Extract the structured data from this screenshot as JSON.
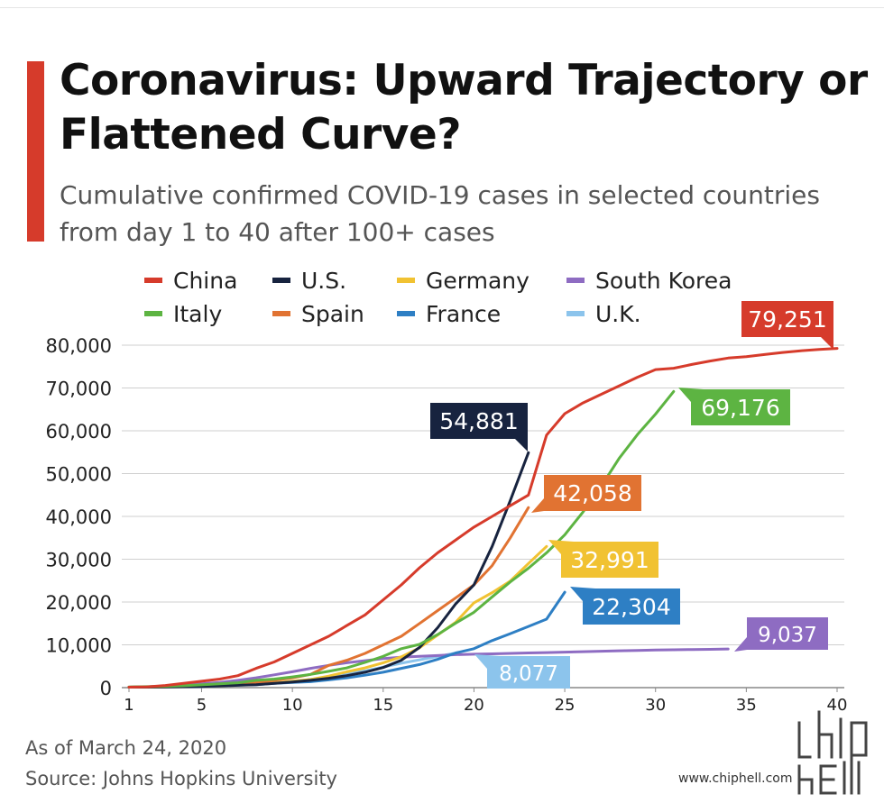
{
  "title": "Coronavirus: Upward Trajectory or Flattened Curve?",
  "subtitle": "Cumulative confirmed COVID-19 cases in selected countries from day 1 to 40 after 100+ cases",
  "footer": {
    "as_of": "As of March 24, 2020",
    "source": "Source: Johns Hopkins University"
  },
  "watermark": {
    "url": "www.chiphell.com"
  },
  "chart_data": {
    "type": "line",
    "xlim": [
      1,
      40
    ],
    "ylim": [
      0,
      80000
    ],
    "x_ticks": [
      1,
      5,
      10,
      15,
      20,
      25,
      30,
      35,
      40
    ],
    "y_ticks": [
      0,
      10000,
      20000,
      30000,
      40000,
      50000,
      60000,
      70000,
      80000
    ],
    "y_tick_labels": [
      "0",
      "10,000",
      "20,000",
      "30,000",
      "40,000",
      "50,000",
      "60,000",
      "70,000",
      "80,000"
    ],
    "grid": "horizontal",
    "legend_position": "top",
    "series": [
      {
        "name": "China",
        "color": "#d63b2b",
        "end_label": "79,251",
        "x": [
          1,
          2,
          3,
          4,
          5,
          6,
          7,
          8,
          9,
          10,
          11,
          12,
          13,
          14,
          15,
          16,
          17,
          18,
          19,
          20,
          21,
          22,
          23,
          24,
          25,
          26,
          27,
          28,
          29,
          30,
          31,
          32,
          33,
          34,
          35,
          36,
          37,
          38,
          39,
          40
        ],
        "y": [
          100,
          200,
          500,
          1000,
          1500,
          2000,
          2800,
          4500,
          6000,
          8000,
          10000,
          12000,
          14500,
          17000,
          20500,
          24000,
          28000,
          31500,
          34500,
          37500,
          40000,
          42500,
          45000,
          59000,
          64000,
          66500,
          68500,
          70500,
          72500,
          74300,
          74600,
          75500,
          76300,
          77000,
          77300,
          77800,
          78300,
          78700,
          79000,
          79251
        ]
      },
      {
        "name": "Italy",
        "color": "#5db442",
        "end_label": "69,176",
        "x": [
          1,
          2,
          3,
          4,
          5,
          6,
          7,
          8,
          9,
          10,
          11,
          12,
          13,
          14,
          15,
          16,
          17,
          18,
          19,
          20,
          21,
          22,
          23,
          24,
          25,
          26,
          27,
          28,
          29,
          30,
          31
        ],
        "y": [
          150,
          230,
          320,
          450,
          650,
          900,
          1130,
          1700,
          2000,
          2500,
          3100,
          3800,
          4600,
          5900,
          7300,
          9100,
          10100,
          12400,
          15100,
          17600,
          21200,
          24700,
          27900,
          31500,
          35700,
          41000,
          47000,
          53600,
          59100,
          63900,
          69176
        ]
      },
      {
        "name": "U.S.",
        "color": "#17233f",
        "end_label": "54,881",
        "x": [
          1,
          2,
          3,
          4,
          5,
          6,
          7,
          8,
          9,
          10,
          11,
          12,
          13,
          14,
          15,
          16,
          17,
          18,
          19,
          20,
          21,
          22,
          23
        ],
        "y": [
          100,
          125,
          160,
          220,
          300,
          420,
          540,
          700,
          1000,
          1300,
          1700,
          2200,
          2800,
          3600,
          4700,
          6400,
          9400,
          14000,
          19600,
          24000,
          33000,
          43700,
          54881
        ]
      },
      {
        "name": "Spain",
        "color": "#e17332",
        "end_label": "42,058",
        "x": [
          1,
          2,
          3,
          4,
          5,
          6,
          7,
          8,
          9,
          10,
          11,
          12,
          13,
          14,
          15,
          16,
          17,
          18,
          19,
          20,
          21,
          22,
          23
        ],
        "y": [
          100,
          150,
          200,
          300,
          400,
          600,
          900,
          1200,
          1700,
          2300,
          3100,
          5200,
          6400,
          8000,
          10000,
          12000,
          15000,
          18000,
          21000,
          24000,
          28500,
          35000,
          42058
        ]
      },
      {
        "name": "Germany",
        "color": "#f1c232",
        "end_label": "32,991",
        "x": [
          1,
          2,
          3,
          4,
          5,
          6,
          7,
          8,
          9,
          10,
          11,
          12,
          13,
          14,
          15,
          16,
          17,
          18,
          19,
          20,
          21,
          22,
          23,
          24
        ],
        "y": [
          100,
          150,
          200,
          250,
          350,
          450,
          650,
          800,
          1100,
          1500,
          1900,
          2700,
          3700,
          4600,
          5800,
          7200,
          9300,
          12300,
          15300,
          19800,
          22200,
          24900,
          29000,
          32991
        ]
      },
      {
        "name": "France",
        "color": "#2e7fc4",
        "end_label": "22,304",
        "x": [
          1,
          2,
          3,
          4,
          5,
          6,
          7,
          8,
          9,
          10,
          11,
          12,
          13,
          14,
          15,
          16,
          17,
          18,
          19,
          20,
          21,
          22,
          23,
          24,
          25
        ],
        "y": [
          100,
          130,
          190,
          210,
          280,
          420,
          610,
          700,
          1000,
          1200,
          1400,
          1800,
          2300,
          2900,
          3600,
          4500,
          5400,
          6600,
          8100,
          9100,
          11000,
          12600,
          14300,
          16000,
          22304
        ]
      },
      {
        "name": "South Korea",
        "color": "#8e6cc2",
        "end_label": "9,037",
        "x": [
          1,
          2,
          3,
          4,
          5,
          6,
          7,
          8,
          9,
          10,
          11,
          12,
          13,
          14,
          15,
          16,
          17,
          18,
          19,
          20,
          21,
          22,
          23,
          24,
          25,
          26,
          27,
          28,
          29,
          30,
          31,
          32,
          33,
          34
        ],
        "y": [
          100,
          200,
          400,
          600,
          900,
          1200,
          1700,
          2300,
          3000,
          3700,
          4500,
          5200,
          5800,
          6300,
          6800,
          7100,
          7300,
          7500,
          7700,
          7800,
          7900,
          8000,
          8100,
          8200,
          8300,
          8400,
          8500,
          8600,
          8700,
          8800,
          8850,
          8900,
          8950,
          9037
        ]
      },
      {
        "name": "U.K.",
        "color": "#8cc4ec",
        "end_label": "8,077",
        "x": [
          1,
          2,
          3,
          4,
          5,
          6,
          7,
          8,
          9,
          10,
          11,
          12,
          13,
          14,
          15,
          16,
          17,
          18,
          19
        ],
        "y": [
          100,
          150,
          200,
          250,
          350,
          450,
          600,
          800,
          1100,
          1400,
          1900,
          2600,
          3300,
          3900,
          4800,
          5700,
          6500,
          7300,
          8077
        ]
      }
    ]
  }
}
